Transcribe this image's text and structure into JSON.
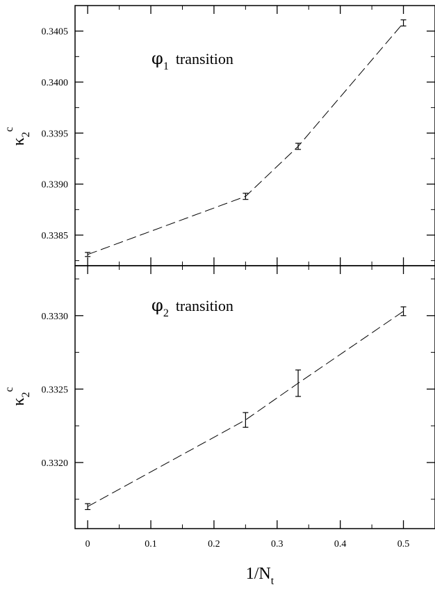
{
  "chart_data": [
    {
      "type": "line",
      "panel": "top",
      "annotation": {
        "symbol": "φ",
        "subscript": "1",
        "text": "transition"
      },
      "ylabel": {
        "symbol": "κ",
        "subscript": "2",
        "superscript": "c"
      },
      "xlim": [
        -0.02,
        0.55
      ],
      "ylim": [
        0.3382,
        0.34075
      ],
      "yticks": [
        0.3385,
        0.339,
        0.3395,
        0.34,
        0.3405
      ],
      "ytick_labels": [
        "0.3385",
        "0.3390",
        "0.3395",
        "0.3400",
        "0.3405"
      ],
      "points": [
        {
          "x": 0,
          "y": 0.33831,
          "err": 2e-05
        },
        {
          "x": 0.25,
          "y": 0.33888,
          "err": 3e-05
        },
        {
          "x": 0.3333,
          "y": 0.33937,
          "err": 3e-05
        },
        {
          "x": 0.5,
          "y": 0.34058,
          "err": 3e-05
        }
      ],
      "line_style": "dashed"
    },
    {
      "type": "line",
      "panel": "bottom",
      "annotation": {
        "symbol": "φ",
        "subscript": "2",
        "text": "transition"
      },
      "ylabel": {
        "symbol": "κ",
        "subscript": "2",
        "superscript": "c"
      },
      "xlim": [
        -0.02,
        0.55
      ],
      "ylim": [
        0.33155,
        0.33334
      ],
      "yticks": [
        0.332,
        0.3325,
        0.333
      ],
      "ytick_labels": [
        "0.3320",
        "0.3325",
        "0.3330"
      ],
      "xticks": [
        0,
        0.1,
        0.2,
        0.3,
        0.4,
        0.5
      ],
      "xtick_labels": [
        "0",
        "0.1",
        "0.2",
        "0.3",
        "0.4",
        "0.5"
      ],
      "xlabel": {
        "text": "1/N",
        "subscript": "t"
      },
      "points": [
        {
          "x": 0,
          "y": 0.3317,
          "err": 2e-05
        },
        {
          "x": 0.25,
          "y": 0.33229,
          "err": 5e-05
        },
        {
          "x": 0.3333,
          "y": 0.33254,
          "err": 9e-05
        },
        {
          "x": 0.5,
          "y": 0.33303,
          "err": 3e-05
        }
      ],
      "line_style": "dashed"
    }
  ]
}
